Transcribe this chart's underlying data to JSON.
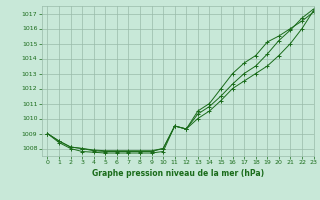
{
  "title": "Graphe pression niveau de la mer (hPa)",
  "bg_color": "#c8e8d8",
  "grid_color": "#99bbaa",
  "line_color": "#1a6b1a",
  "xlim": [
    -0.5,
    23
  ],
  "ylim": [
    1007.5,
    1017.5
  ],
  "yticks": [
    1008,
    1009,
    1010,
    1011,
    1012,
    1013,
    1014,
    1015,
    1016,
    1017
  ],
  "xticks": [
    0,
    1,
    2,
    3,
    4,
    5,
    6,
    7,
    8,
    9,
    10,
    11,
    12,
    13,
    14,
    15,
    16,
    17,
    18,
    19,
    20,
    21,
    22,
    23
  ],
  "series": [
    [
      1009.0,
      1008.5,
      1008.1,
      1008.0,
      1007.9,
      1007.85,
      1007.85,
      1007.85,
      1007.85,
      1007.85,
      1008.0,
      1009.5,
      1009.3,
      1010.0,
      1010.5,
      1011.2,
      1012.0,
      1012.5,
      1013.0,
      1013.5,
      1014.2,
      1015.0,
      1016.0,
      1017.2
    ],
    [
      1009.0,
      1008.5,
      1008.1,
      1008.0,
      1007.85,
      1007.8,
      1007.8,
      1007.8,
      1007.8,
      1007.8,
      1008.0,
      1009.5,
      1009.3,
      1010.3,
      1010.8,
      1011.5,
      1012.3,
      1013.0,
      1013.5,
      1014.3,
      1015.2,
      1015.9,
      1016.7,
      1017.3
    ],
    [
      1009.0,
      1008.4,
      1008.0,
      1007.8,
      1007.75,
      1007.7,
      1007.7,
      1007.7,
      1007.7,
      1007.7,
      1007.8,
      1009.5,
      1009.3,
      1010.5,
      1011.0,
      1012.0,
      1013.0,
      1013.7,
      1014.2,
      1015.1,
      1015.5,
      1016.0,
      1016.5,
      1017.1
    ]
  ],
  "figsize": [
    3.2,
    2.0
  ],
  "dpi": 100
}
